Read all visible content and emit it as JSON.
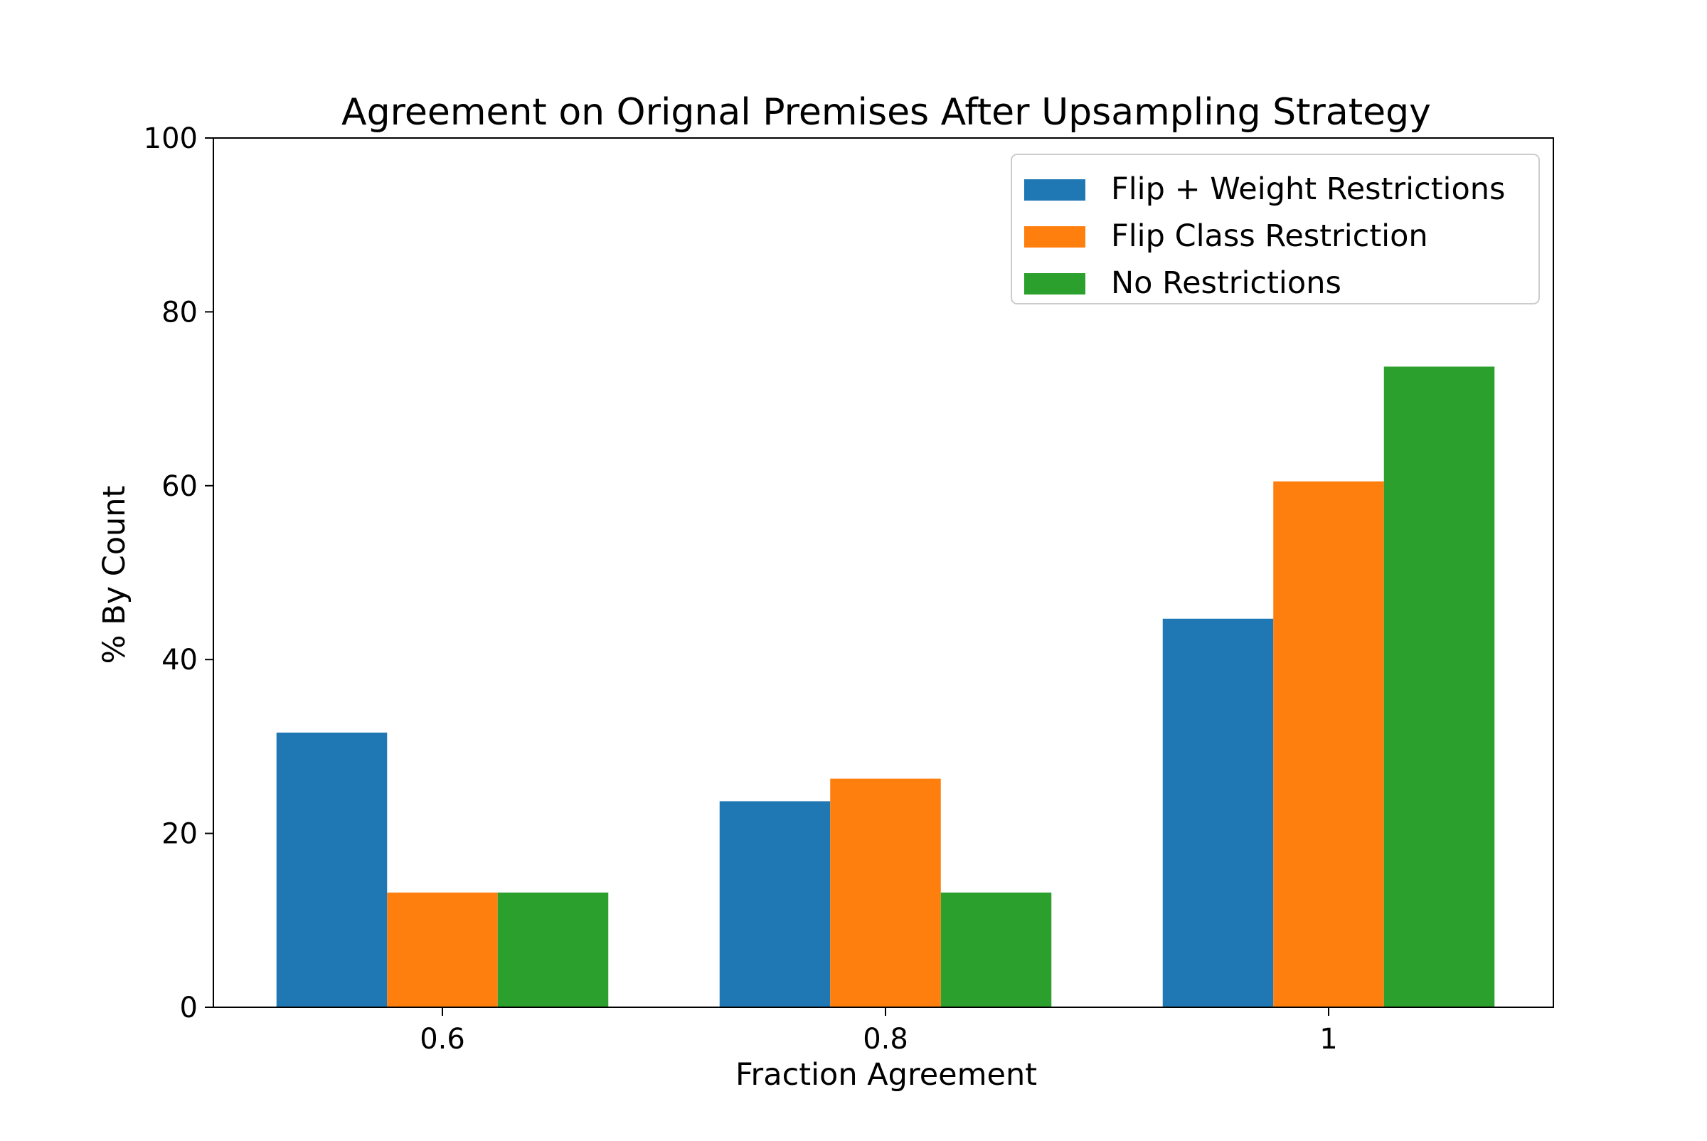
{
  "chart_data": {
    "type": "bar",
    "title": "Agreement on Orignal Premises After Upsampling Strategy",
    "xlabel": "Fraction Agreement",
    "ylabel": "% By Count",
    "categories": [
      "0.6",
      "0.8",
      "1"
    ],
    "ylim": [
      0,
      100
    ],
    "yticks": [
      "0",
      "20",
      "40",
      "60",
      "80",
      "100"
    ],
    "grid": false,
    "legend_position": "top-right",
    "series": [
      {
        "name": "Flip + Weight Restrictions",
        "color": "#1f77b4",
        "values": [
          31.6,
          23.7,
          44.7
        ]
      },
      {
        "name": "Flip Class Restriction",
        "color": "#ff7f0e",
        "values": [
          13.2,
          26.3,
          60.5
        ]
      },
      {
        "name": "No Restrictions",
        "color": "#2ca02c",
        "values": [
          13.2,
          13.2,
          73.7
        ]
      }
    ]
  }
}
